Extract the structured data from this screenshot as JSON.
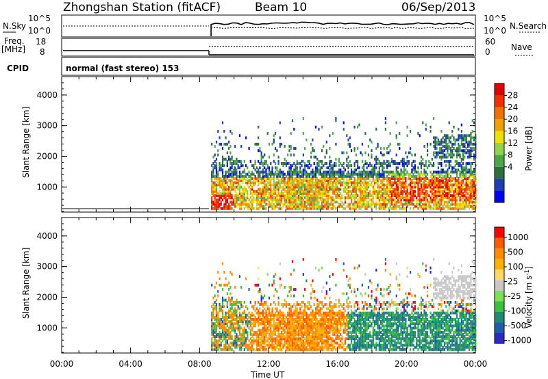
{
  "header": {
    "station": "Zhongshan Station (fitACF)",
    "beam": "Beam 10",
    "date": "06/Sep/2013"
  },
  "top_panels": {
    "nsky_label": "N.Sky",
    "nsky_ticks": [
      "10^5",
      "10^0"
    ],
    "nsearch_label": "N.Search",
    "freq_label": "Freq.",
    "freq_unit": "[MHz]",
    "freq_ticks": [
      "18",
      "8"
    ],
    "nave_label": "Nave",
    "nave_ticks": [
      "60",
      "0"
    ],
    "cpid_label": "CPID",
    "cpid_text": "normal (fast stereo) 153"
  },
  "colors": {
    "power_scale": [
      "#0000ff",
      "#1f3fb0",
      "#2e6f3e",
      "#4aa84a",
      "#8fd44a",
      "#f0e000",
      "#f0a000",
      "#f07000",
      "#f03000",
      "#e00000"
    ],
    "velocity_scale": [
      "#ff0000",
      "#ff5a00",
      "#ff8c00",
      "#ffb000",
      "#ffd860",
      "#c8c8c8",
      "#7ce050",
      "#3cc03c",
      "#1f8c6f",
      "#1f5fa8",
      "#2a2acc"
    ]
  },
  "chart_data": [
    {
      "type": "heatmap",
      "title": "",
      "ylabel": "Slant Range [km]",
      "ylim": [
        180,
        4600
      ],
      "y_ticks": [
        "4000",
        "3000",
        "2000",
        "1000"
      ],
      "x_ticks": [
        "00:00",
        "04:00",
        "08:00",
        "12:00",
        "16:00",
        "20:00",
        "00:00"
      ],
      "colorbar": {
        "label": "Power [dB]",
        "ticks": [
          "28",
          "24",
          "20",
          "16",
          "12",
          "8",
          "4"
        ],
        "range": [
          0,
          30
        ]
      },
      "data_start_time": "08:40",
      "data_end_time": "24:00"
    },
    {
      "type": "heatmap",
      "title": "",
      "ylabel": "Slant Range [km]",
      "xlabel": "Time UT",
      "ylim": [
        180,
        4600
      ],
      "y_ticks": [
        "4000",
        "3000",
        "2000",
        "1000"
      ],
      "x_ticks": [
        "00:00",
        "04:00",
        "08:00",
        "12:00",
        "16:00",
        "20:00",
        "00:00"
      ],
      "colorbar": {
        "label": "Velocity [m s^-1]",
        "ticks": [
          "1000",
          "500",
          "100",
          "25",
          "-25",
          "-100",
          "-500",
          "-1000"
        ],
        "range": [
          -1200,
          1200
        ]
      },
      "data_start_time": "08:40",
      "data_end_time": "24:00"
    }
  ]
}
